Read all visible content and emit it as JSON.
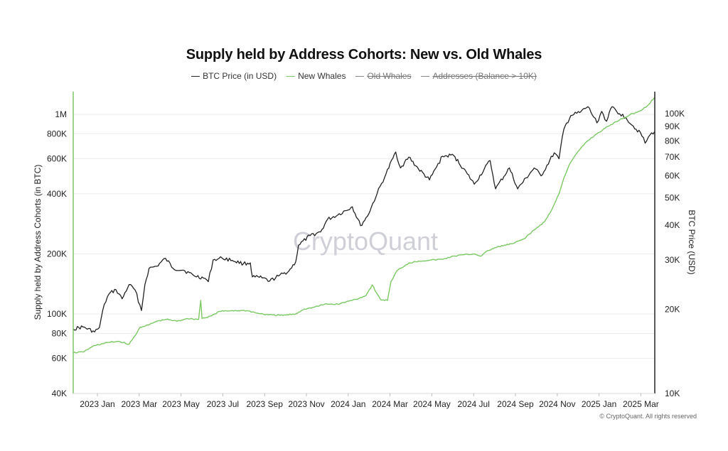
{
  "chart_data": {
    "type": "line",
    "title": "Supply held by Address Cohorts: New vs. Old Whales",
    "legend": [
      {
        "name": "BTC Price (in USD)",
        "color": "#222222",
        "hidden": false
      },
      {
        "name": "New Whales",
        "color": "#7ac963",
        "hidden": false
      },
      {
        "name": "Old Whales",
        "color": "#888888",
        "hidden": true
      },
      {
        "name": "Addresses (Balance > 10K)",
        "color": "#888888",
        "hidden": true
      }
    ],
    "x_tick_labels": [
      "2023 Jan",
      "2023 Mar",
      "2023 May",
      "2023 Jul",
      "2023 Sep",
      "2023 Nov",
      "2024 Jan",
      "2024 Mar",
      "2024 May",
      "2024 Jul",
      "2024 Sep",
      "2024 Nov",
      "2025 Jan",
      "2025 Mar"
    ],
    "x_range": [
      "2022-12-01",
      "2025-03-24"
    ],
    "y_left": {
      "label": "Supply held by Address Cohorts (in BTC)",
      "scale": "log",
      "range": [
        40000,
        1300000
      ],
      "ticks": [
        {
          "value": 40000,
          "label": "40K"
        },
        {
          "value": 60000,
          "label": "60K"
        },
        {
          "value": 80000,
          "label": "80K"
        },
        {
          "value": 100000,
          "label": "100K"
        },
        {
          "value": 200000,
          "label": "200K"
        },
        {
          "value": 400000,
          "label": "400K"
        },
        {
          "value": 600000,
          "label": "600K"
        },
        {
          "value": 800000,
          "label": "800K"
        },
        {
          "value": 1000000,
          "label": "1M"
        }
      ]
    },
    "y_right": {
      "label": "BTC Price (USD)",
      "scale": "log",
      "range": [
        10000,
        120000
      ],
      "ticks": [
        {
          "value": 10000,
          "label": "10K"
        },
        {
          "value": 20000,
          "label": "20K"
        },
        {
          "value": 30000,
          "label": "30K"
        },
        {
          "value": 40000,
          "label": "40K"
        },
        {
          "value": 50000,
          "label": "50K"
        },
        {
          "value": 60000,
          "label": "60K"
        },
        {
          "value": 70000,
          "label": "70K"
        },
        {
          "value": 80000,
          "label": "80K"
        },
        {
          "value": 90000,
          "label": "90K"
        },
        {
          "value": 100000,
          "label": "100K"
        }
      ]
    },
    "series": [
      {
        "name": "BTC Price (in USD)",
        "axis": "right",
        "color": "#222222",
        "points": [
          [
            "2022-12-01",
            17000
          ],
          [
            "2022-12-15",
            17300
          ],
          [
            "2023-01-01",
            16600
          ],
          [
            "2023-01-08",
            17200
          ],
          [
            "2023-01-15",
            20800
          ],
          [
            "2023-01-22",
            22700
          ],
          [
            "2023-02-01",
            23500
          ],
          [
            "2023-02-10",
            21800
          ],
          [
            "2023-02-20",
            24500
          ],
          [
            "2023-03-01",
            23400
          ],
          [
            "2023-03-10",
            19800
          ],
          [
            "2023-03-15",
            24500
          ],
          [
            "2023-03-21",
            28000
          ],
          [
            "2023-04-01",
            28500
          ],
          [
            "2023-04-14",
            30400
          ],
          [
            "2023-04-25",
            28000
          ],
          [
            "2023-05-10",
            27600
          ],
          [
            "2023-05-25",
            26400
          ],
          [
            "2023-06-10",
            25800
          ],
          [
            "2023-06-15",
            25100
          ],
          [
            "2023-06-22",
            30000
          ],
          [
            "2023-07-05",
            30500
          ],
          [
            "2023-07-20",
            29900
          ],
          [
            "2023-08-05",
            29100
          ],
          [
            "2023-08-15",
            29300
          ],
          [
            "2023-08-18",
            26100
          ],
          [
            "2023-09-01",
            25900
          ],
          [
            "2023-09-12",
            25200
          ],
          [
            "2023-09-25",
            26300
          ],
          [
            "2023-10-10",
            27400
          ],
          [
            "2023-10-20",
            29600
          ],
          [
            "2023-10-24",
            33900
          ],
          [
            "2023-11-10",
            36700
          ],
          [
            "2023-11-25",
            37800
          ],
          [
            "2023-12-05",
            41900
          ],
          [
            "2023-12-20",
            43500
          ],
          [
            "2024-01-10",
            46500
          ],
          [
            "2024-01-22",
            39800
          ],
          [
            "2024-02-01",
            43000
          ],
          [
            "2024-02-15",
            51800
          ],
          [
            "2024-02-28",
            61000
          ],
          [
            "2024-03-13",
            73000
          ],
          [
            "2024-03-20",
            64000
          ],
          [
            "2024-04-01",
            70000
          ],
          [
            "2024-04-15",
            63500
          ],
          [
            "2024-05-01",
            58000
          ],
          [
            "2024-05-20",
            70500
          ],
          [
            "2024-06-05",
            71000
          ],
          [
            "2024-06-25",
            60900
          ],
          [
            "2024-07-05",
            56000
          ],
          [
            "2024-07-28",
            68000
          ],
          [
            "2024-08-05",
            53900
          ],
          [
            "2024-08-25",
            64000
          ],
          [
            "2024-09-06",
            53900
          ],
          [
            "2024-09-30",
            64000
          ],
          [
            "2024-10-10",
            60000
          ],
          [
            "2024-10-29",
            72500
          ],
          [
            "2024-11-05",
            69000
          ],
          [
            "2024-11-12",
            88000
          ],
          [
            "2024-11-22",
            98500
          ],
          [
            "2024-12-05",
            101000
          ],
          [
            "2024-12-17",
            106000
          ],
          [
            "2024-12-30",
            92800
          ],
          [
            "2025-01-06",
            102000
          ],
          [
            "2025-01-13",
            94000
          ],
          [
            "2025-01-21",
            106000
          ],
          [
            "2025-02-01",
            100000
          ],
          [
            "2025-02-10",
            97000
          ],
          [
            "2025-02-25",
            88000
          ],
          [
            "2025-03-03",
            86000
          ],
          [
            "2025-03-10",
            78500
          ],
          [
            "2025-03-17",
            84000
          ],
          [
            "2025-03-24",
            86500
          ]
        ]
      },
      {
        "name": "New Whales",
        "axis": "left",
        "color": "#7ac963",
        "points": [
          [
            "2022-12-01",
            64000
          ],
          [
            "2022-12-15",
            64500
          ],
          [
            "2023-01-01",
            69500
          ],
          [
            "2023-01-20",
            72000
          ],
          [
            "2023-02-05",
            73000
          ],
          [
            "2023-02-20",
            70500
          ],
          [
            "2023-03-01",
            78000
          ],
          [
            "2023-03-08",
            86000
          ],
          [
            "2023-03-20",
            88000
          ],
          [
            "2023-04-01",
            92000
          ],
          [
            "2023-04-15",
            94000
          ],
          [
            "2023-05-01",
            92000
          ],
          [
            "2023-05-15",
            95000
          ],
          [
            "2023-06-01",
            94000
          ],
          [
            "2023-06-04",
            117000
          ],
          [
            "2023-06-06",
            95000
          ],
          [
            "2023-06-20",
            98000
          ],
          [
            "2023-07-01",
            103000
          ],
          [
            "2023-07-20",
            104000
          ],
          [
            "2023-08-10",
            104000
          ],
          [
            "2023-08-25",
            101000
          ],
          [
            "2023-09-10",
            99000
          ],
          [
            "2023-10-01",
            98500
          ],
          [
            "2023-10-20",
            100000
          ],
          [
            "2023-11-01",
            106000
          ],
          [
            "2023-11-15",
            108000
          ],
          [
            "2023-12-01",
            112000
          ],
          [
            "2023-12-20",
            112000
          ],
          [
            "2024-01-05",
            116000
          ],
          [
            "2024-01-20",
            120000
          ],
          [
            "2024-01-30",
            124000
          ],
          [
            "2024-02-08",
            140000
          ],
          [
            "2024-02-14",
            128000
          ],
          [
            "2024-02-20",
            118000
          ],
          [
            "2024-03-01",
            117000
          ],
          [
            "2024-03-06",
            145000
          ],
          [
            "2024-03-15",
            165000
          ],
          [
            "2024-04-01",
            180000
          ],
          [
            "2024-04-15",
            184000
          ],
          [
            "2024-05-01",
            186000
          ],
          [
            "2024-05-20",
            188000
          ],
          [
            "2024-06-05",
            195000
          ],
          [
            "2024-06-20",
            198000
          ],
          [
            "2024-07-05",
            200000
          ],
          [
            "2024-07-15",
            195000
          ],
          [
            "2024-07-25",
            208000
          ],
          [
            "2024-08-10",
            218000
          ],
          [
            "2024-08-30",
            225000
          ],
          [
            "2024-09-15",
            238000
          ],
          [
            "2024-10-01",
            265000
          ],
          [
            "2024-10-15",
            290000
          ],
          [
            "2024-10-25",
            330000
          ],
          [
            "2024-11-05",
            400000
          ],
          [
            "2024-11-12",
            480000
          ],
          [
            "2024-11-20",
            560000
          ],
          [
            "2024-12-01",
            640000
          ],
          [
            "2024-12-15",
            730000
          ],
          [
            "2024-12-30",
            800000
          ],
          [
            "2025-01-15",
            870000
          ],
          [
            "2025-02-01",
            940000
          ],
          [
            "2025-02-20",
            1010000
          ],
          [
            "2025-03-05",
            1050000
          ],
          [
            "2025-03-15",
            1120000
          ],
          [
            "2025-03-24",
            1220000
          ]
        ]
      }
    ]
  },
  "watermark": "CryptoQuant",
  "footer": "© CryptoQuant. All rights reserved"
}
